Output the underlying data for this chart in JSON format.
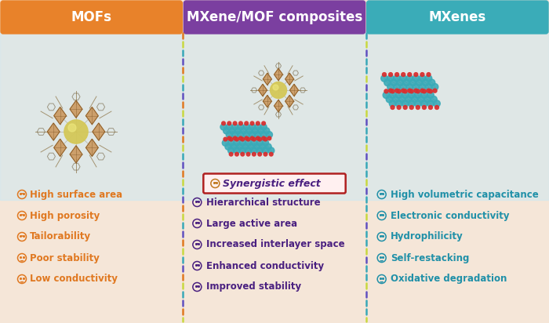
{
  "bg_color": "#f5e6d8",
  "top_strip_color": "#cde8f2",
  "header_colors": [
    "#e8822a",
    "#7b3fa0",
    "#3aacb8"
  ],
  "header_texts": [
    "MOFs",
    "MXene/MOF composites",
    "MXenes"
  ],
  "col1_color": "#e07820",
  "col2_color": "#4a2080",
  "col3_color": "#2090a8",
  "synergistic_border": "#b02020",
  "synergistic_bg": "#fff0f0",
  "col1_items": [
    {
      "text": "High surface area",
      "type": "good"
    },
    {
      "text": "High porosity",
      "type": "good"
    },
    {
      "text": "Tailorability",
      "type": "good"
    },
    {
      "text": "Poor stability",
      "type": "bad"
    },
    {
      "text": "Low conductivity",
      "type": "bad"
    }
  ],
  "col2_synergistic": "Synergistic effect",
  "col2_items": [
    {
      "text": "Hierarchical structure",
      "type": "good"
    },
    {
      "text": "Large active area",
      "type": "good"
    },
    {
      "text": "Increased interlayer space",
      "type": "good"
    },
    {
      "text": "Enhanced conductivity",
      "type": "good"
    },
    {
      "text": "Improved stability",
      "type": "good"
    }
  ],
  "col3_items": [
    {
      "text": "High volumetric capacitance",
      "type": "good"
    },
    {
      "text": "Electronic conductivity",
      "type": "good"
    },
    {
      "text": "Hydrophilicity",
      "type": "good"
    },
    {
      "text": "Self-restacking",
      "type": "bad"
    },
    {
      "text": "Oxidative degradation",
      "type": "bad"
    }
  ],
  "divider_left_colors": [
    "#e07820",
    "#c8d840",
    "#38a8b8",
    "#6050c0"
  ],
  "divider_right_colors": [
    "#38a8b8",
    "#c8d840",
    "#6050c0",
    "#38a8b8"
  ],
  "mof_color": "#c89050",
  "mof_sphere": "#d4c858",
  "mxene_atom": "#3aaab8",
  "mxene_red": "#d83030",
  "mxene_line": "#50909a"
}
